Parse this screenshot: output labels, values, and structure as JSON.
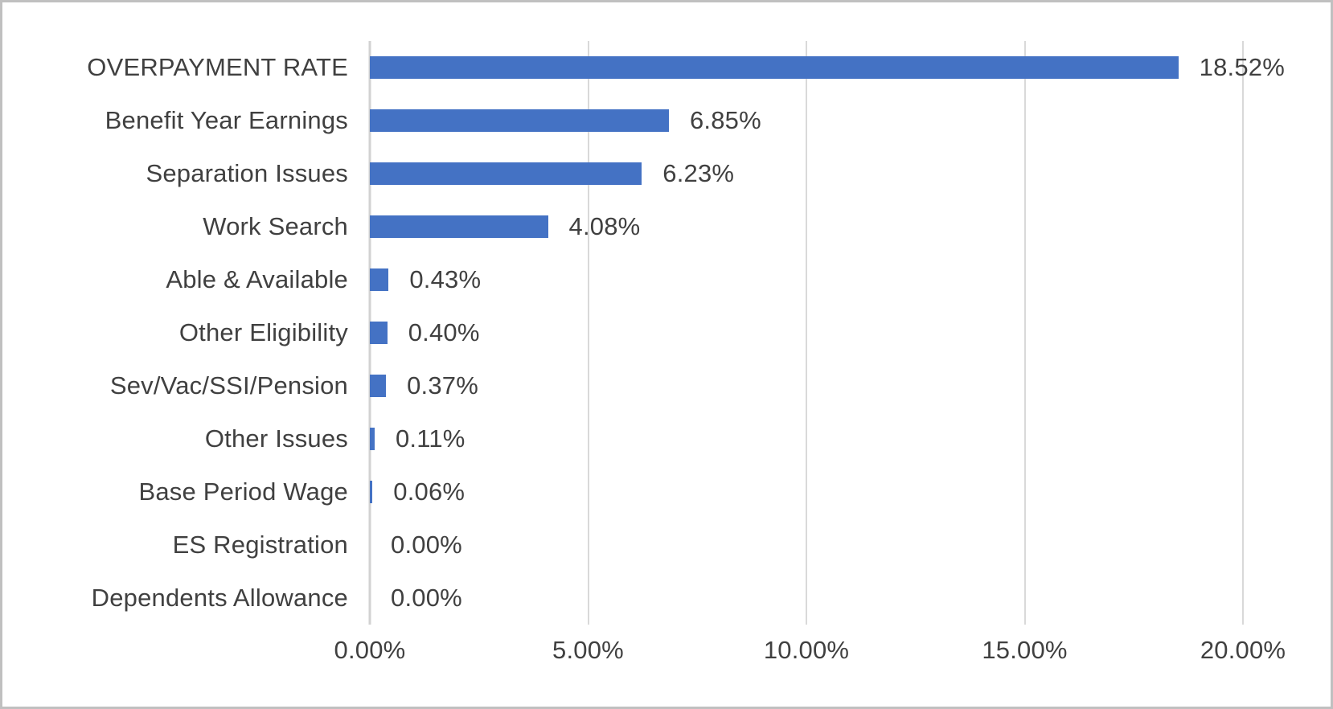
{
  "chart_data": {
    "type": "bar",
    "orientation": "horizontal",
    "title": "",
    "xlabel": "",
    "ylabel": "",
    "categories": [
      "OVERPAYMENT RATE",
      "Benefit Year Earnings",
      "Separation Issues",
      "Work Search",
      "Able & Available",
      "Other Eligibility",
      "Sev/Vac/SSI/Pension",
      "Other Issues",
      "Base Period Wage",
      "ES Registration",
      "Dependents Allowance"
    ],
    "values": [
      18.52,
      6.85,
      6.23,
      4.08,
      0.43,
      0.4,
      0.37,
      0.11,
      0.06,
      0.0,
      0.0
    ],
    "value_labels": [
      "18.52%",
      "6.85%",
      "6.23%",
      "4.08%",
      "0.43%",
      "0.40%",
      "0.37%",
      "0.11%",
      "0.06%",
      "0.00%",
      "0.00%"
    ],
    "x_ticks": [
      "0.00%",
      "5.00%",
      "10.00%",
      "15.00%",
      "20.00%"
    ],
    "xlim": [
      0,
      20
    ],
    "grid": "vertical-gridlines-on",
    "legend": "none",
    "colors": {
      "bar": "#4472C4",
      "text": "#404040",
      "gridline": "#D9D9D9",
      "axis_line": "#D2D2D2",
      "border": "#C0C0C0",
      "background": "#FFFFFF"
    }
  }
}
